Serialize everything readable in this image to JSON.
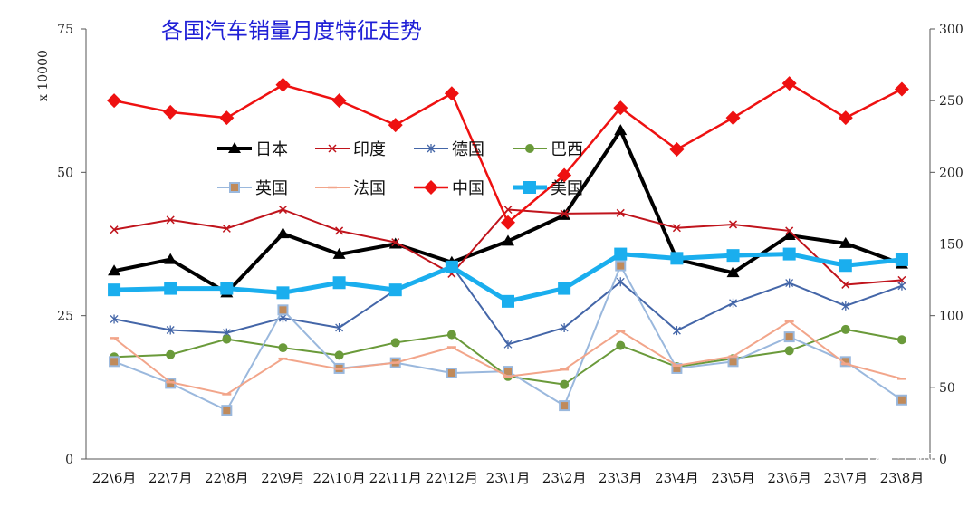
{
  "chart_data": {
    "type": "line",
    "title": "各国汽车销量月度特征走势",
    "ylabel": "x 10000",
    "ylim": [
      0,
      75
    ],
    "y2lim": [
      0,
      300
    ],
    "yticks": [
      "0",
      "25",
      "50",
      "75"
    ],
    "y2ticks": [
      "0",
      "50",
      "100",
      "150",
      "200",
      "250",
      "300"
    ],
    "categories": [
      "22\\6月",
      "22\\7月",
      "22\\8月",
      "22\\9月",
      "22\\10月",
      "22\\11月",
      "22\\12月",
      "23\\1月",
      "23\\2月",
      "23\\3月",
      "23\\4月",
      "23\\5月",
      "23\\6月",
      "23\\7月",
      "23\\8月"
    ],
    "series": [
      {
        "name": "日本",
        "axis": "left",
        "color": "#000000",
        "marker": "triangle",
        "width": 4,
        "values": [
          32.8,
          34.8,
          29.0,
          39.3,
          35.7,
          37.5,
          34.3,
          38.0,
          42.5,
          57.3,
          34.8,
          32.5,
          39.0,
          37.6,
          34.0
        ]
      },
      {
        "name": "印度",
        "axis": "left",
        "color": "#c0141c",
        "marker": "x",
        "width": 2,
        "values": [
          40.0,
          41.7,
          40.2,
          43.5,
          39.8,
          37.8,
          32.3,
          43.5,
          42.8,
          42.9,
          40.3,
          40.9,
          39.8,
          30.4,
          31.2
        ]
      },
      {
        "name": "德国",
        "axis": "left",
        "color": "#4466a8",
        "marker": "star",
        "width": 2,
        "values": [
          24.4,
          22.5,
          22.0,
          24.6,
          22.9,
          29.5,
          33.7,
          20.0,
          22.9,
          30.9,
          22.4,
          27.2,
          30.7,
          26.7,
          30.2
        ]
      },
      {
        "name": "巴西",
        "axis": "left",
        "color": "#6a9a3a",
        "marker": "circle",
        "width": 2,
        "values": [
          17.8,
          18.2,
          20.9,
          19.4,
          18.1,
          20.3,
          21.7,
          14.4,
          13.0,
          19.8,
          16.1,
          17.5,
          18.9,
          22.6,
          20.8
        ]
      },
      {
        "name": "英国",
        "axis": "left",
        "color": "#9ab8dd",
        "marker": "square",
        "width": 2,
        "values": [
          17.0,
          13.2,
          8.5,
          26.0,
          15.8,
          16.8,
          15.0,
          15.3,
          9.3,
          33.7,
          15.8,
          17.0,
          21.3,
          17.0,
          10.3
        ]
      },
      {
        "name": "法国",
        "axis": "left",
        "color": "#f2a58a",
        "marker": "dash",
        "width": 2,
        "values": [
          21.1,
          13.4,
          11.3,
          17.5,
          15.7,
          16.8,
          19.5,
          14.4,
          15.6,
          22.3,
          16.3,
          17.9,
          24.0,
          16.6,
          14.0
        ]
      },
      {
        "name": "中国",
        "axis": "right",
        "color": "#ee1111",
        "marker": "diamond",
        "width": 2.5,
        "values": [
          250,
          242,
          238,
          261,
          250,
          233,
          255,
          165,
          198,
          245,
          216,
          238,
          262,
          238,
          258
        ]
      },
      {
        "name": "美国",
        "axis": "right",
        "color": "#1aaeee",
        "marker": "bigsquare",
        "width": 5,
        "values": [
          118,
          119,
          119,
          116,
          123,
          118,
          134,
          110,
          119,
          143,
          140,
          142,
          143,
          135,
          139
        ]
      }
    ],
    "legend": [
      [
        "日本",
        "印度",
        "德国",
        "巴西"
      ],
      [
        "英国",
        "法国",
        "中国",
        "美国"
      ]
    ]
  },
  "watermark": "崔东树"
}
